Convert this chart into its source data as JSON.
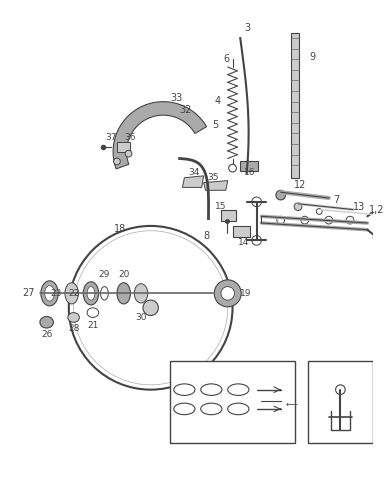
{
  "bg": "white",
  "line_color": "#444444",
  "gray1": "#888888",
  "gray2": "#aaaaaa",
  "gray3": "#cccccc",
  "gray4": "#666666",
  "fig_w": 3.86,
  "fig_h": 5.0,
  "dpi": 100
}
